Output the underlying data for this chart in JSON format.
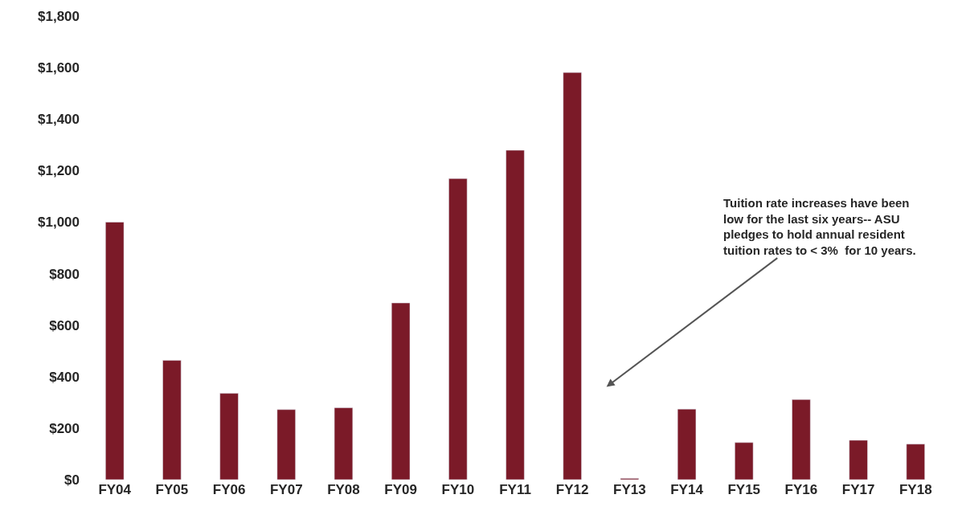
{
  "chart_data": {
    "type": "bar",
    "categories": [
      "FY04",
      "FY05",
      "FY06",
      "FY07",
      "FY08",
      "FY09",
      "FY10",
      "FY11",
      "FY12",
      "FY13",
      "FY14",
      "FY15",
      "FY16",
      "FY17",
      "FY18"
    ],
    "values": [
      1000,
      463,
      335,
      272,
      279,
      686,
      1169,
      1279,
      1581,
      5,
      274,
      144,
      311,
      153,
      138
    ],
    "color": "#7b1a28",
    "ylim": [
      0,
      1800
    ],
    "yticks": [
      {
        "value": 0,
        "label": "$0"
      },
      {
        "value": 200,
        "label": "$200"
      },
      {
        "value": 400,
        "label": "$400"
      },
      {
        "value": 600,
        "label": "$600"
      },
      {
        "value": 800,
        "label": "$800"
      },
      {
        "value": 1000,
        "label": "$1,000"
      },
      {
        "value": 1200,
        "label": "$1,200"
      },
      {
        "value": 1400,
        "label": "$1,400"
      },
      {
        "value": 1600,
        "label": "$1,600"
      },
      {
        "value": 1800,
        "label": "$1,800"
      }
    ],
    "annotations": [
      "Tuition rate increases have been\nlow for the last six years-- ASU\npledges to hold annual resident\ntuition rates to < 3%  for 10 years."
    ]
  }
}
